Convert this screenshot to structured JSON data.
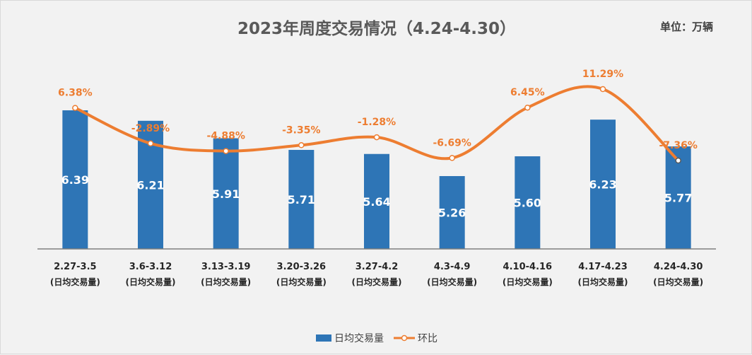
{
  "title": "2023年周度交易情况（4.24-4.30）",
  "unit": "单位：万辆",
  "colors": {
    "bar": "#2e75b6",
    "line": "#ed7d31",
    "bar_label": "#ffffff",
    "pct_label": "#ed7d31"
  },
  "chart_data": {
    "type": "bar",
    "categories": [
      "2.27-3.5",
      "3.6-3.12",
      "3.13-3.19",
      "3.20-3.26",
      "3.27-4.2",
      "4.3-4.9",
      "4.10-4.16",
      "4.17-4.23",
      "4.24-4.30"
    ],
    "category_sublabel": "(日均交易量)",
    "series": [
      {
        "name": "日均交易量",
        "type": "bar",
        "values": [
          6.39,
          6.21,
          5.91,
          5.71,
          5.64,
          5.26,
          5.6,
          6.23,
          5.77
        ]
      },
      {
        "name": "环比",
        "type": "line",
        "smooth": true,
        "values": [
          6.38,
          -2.89,
          -4.88,
          -3.35,
          -1.28,
          -6.69,
          6.45,
          11.29,
          -7.36
        ],
        "labels": [
          "6.38%",
          "-2.89%",
          "-4.88%",
          "-3.35%",
          "-1.28%",
          "-6.69%",
          "6.45%",
          "11.29%",
          "-7.36%"
        ]
      }
    ],
    "legend_position": "bottom",
    "grid": false
  }
}
